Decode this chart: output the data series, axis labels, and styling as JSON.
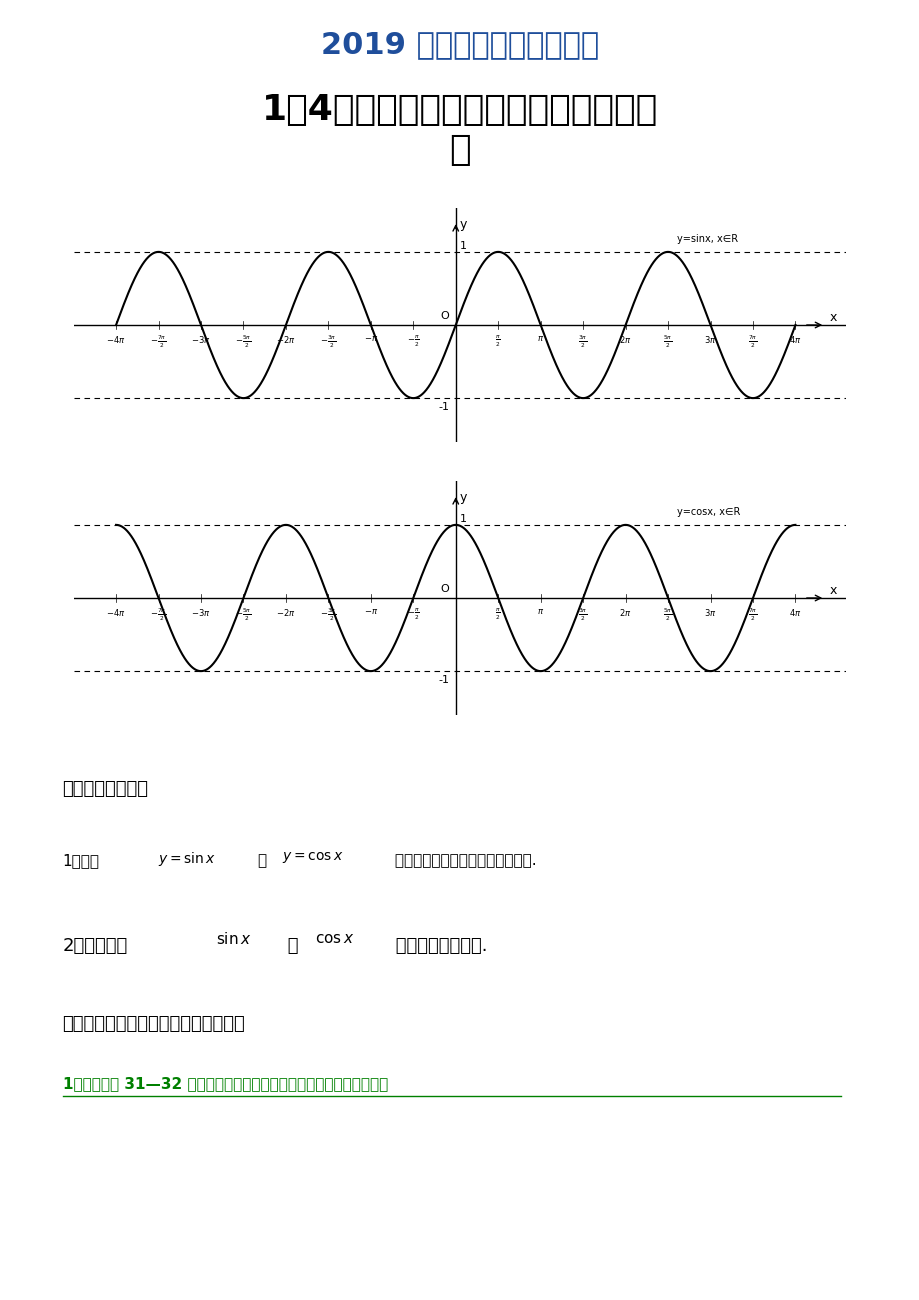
{
  "title1": "2019 届数学人教版精品资料",
  "title2": "1、4、２．１正弦函数、余弦函数的图\n像",
  "title1_color": "#1F4E9B",
  "title2_color": "#000000",
  "title1_fontsize": 22,
  "title2_fontsize": 26,
  "bg_color": "#ffffff",
  "section1_header": "一、【学习目标】",
  "section2_header": "二、【教学内容和要求及教学学过程】",
  "link_text": "1、阅读教材 31—32 页内容，回答问题（正弦函数、余弦函数的图像）",
  "link_color": "#008000",
  "sin_label": "y=sinx, x∈R",
  "cos_label": "y=cosx, x∈R"
}
